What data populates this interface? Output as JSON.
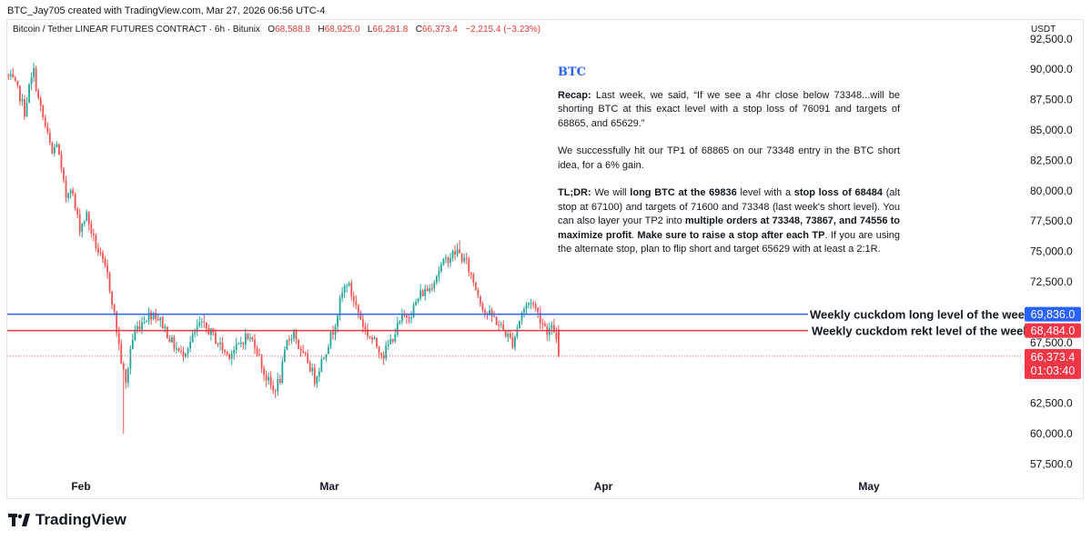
{
  "header": {
    "credit": "BTC_Jay705 created with TradingView.com, Mar 27, 2026 06:56 UTC-4",
    "symbol": "Bitcoin / Tether LINEAR FUTURES CONTRACT · 6h · Bitunix",
    "o_label": "O",
    "o_value": "68,588.8",
    "h_label": "H",
    "h_value": "68,925.0",
    "l_label": "L",
    "l_value": "66,281.8",
    "c_label": "C",
    "c_value": "66,373.4",
    "change": "−2,215.4 (−3.23%)"
  },
  "currency": "USDT",
  "note": {
    "title": "BTC",
    "p1_b1": "Recap:",
    "p1_t1": " Last week, we said, “If we see a 4hr close below 73348...will be shorting BTC at this exact level with a stop loss of 76091 and targets of 68865, and 65629.”",
    "p2": "We successfully hit our TP1 of 68865 on our 73348 entry in the BTC short idea, for a 6% gain.",
    "p3_b1": "TL;DR:",
    "p3_t1": " We will ",
    "p3_b2": "long BTC at the 69836",
    "p3_t2": " level with a ",
    "p3_b3": "stop loss of 68484",
    "p3_t3": " (alt stop at 67100) and targets of 71600 and 73348 (last week's short level). You can also layer your TP2 into ",
    "p3_b4": "multiple orders at 73348, 73867, and 74556 to maximize profit",
    "p3_t4": ". ",
    "p3_b5": "Make sure to raise a stop after each TP",
    "p3_t5": ". If you are using the alternate stop, plan to flip short and target 65629 with at least a 2:1R."
  },
  "logo_text": "TradingView",
  "colors": {
    "up": "#26a69a",
    "down": "#ef5350",
    "blue_level": "#2962ff",
    "red_level": "#f23645",
    "text": "#131722"
  },
  "chart_data": {
    "type": "candlestick",
    "timeframe": "6h",
    "ylim": [
      56000,
      92500
    ],
    "y_ticks": [
      "92,500.0",
      "90,000.0",
      "87,500.0",
      "85,000.0",
      "82,500.0",
      "80,000.0",
      "77,500.0",
      "75,000.0",
      "72,500.0",
      "67,500.0",
      "62,500.0",
      "60,000.0",
      "57,500.0"
    ],
    "y_tick_values": [
      92500,
      90000,
      87500,
      85000,
      82500,
      80000,
      77500,
      75000,
      72500,
      67500,
      62500,
      60000,
      57500
    ],
    "x_ticks": [
      "Feb",
      "Mar",
      "Apr",
      "May"
    ],
    "price_path": [
      [
        0,
        89500
      ],
      [
        3,
        89000
      ],
      [
        6,
        87800
      ],
      [
        8,
        86500
      ],
      [
        10,
        88500
      ],
      [
        12,
        89800
      ],
      [
        14,
        87500
      ],
      [
        16,
        86000
      ],
      [
        18,
        84500
      ],
      [
        20,
        83000
      ],
      [
        22,
        84000
      ],
      [
        24,
        81500
      ],
      [
        26,
        79500
      ],
      [
        28,
        80500
      ],
      [
        30,
        78500
      ],
      [
        32,
        77000
      ],
      [
        35,
        78000
      ],
      [
        38,
        76000
      ],
      [
        41,
        74500
      ],
      [
        44,
        73000
      ],
      [
        46,
        71000
      ],
      [
        48,
        68500
      ],
      [
        50,
        66000
      ],
      [
        52,
        64000
      ],
      [
        54,
        67000
      ],
      [
        56,
        68500
      ],
      [
        60,
        69500
      ],
      [
        64,
        70000
      ],
      [
        68,
        69000
      ],
      [
        72,
        67500
      ],
      [
        76,
        66500
      ],
      [
        80,
        67500
      ],
      [
        84,
        69000
      ],
      [
        88,
        68500
      ],
      [
        92,
        67500
      ],
      [
        96,
        66500
      ],
      [
        100,
        67000
      ],
      [
        104,
        68000
      ],
      [
        108,
        67500
      ],
      [
        112,
        65000
      ],
      [
        116,
        63500
      ],
      [
        119,
        64500
      ],
      [
        122,
        67500
      ],
      [
        125,
        68500
      ],
      [
        128,
        66500
      ],
      [
        131,
        66000
      ],
      [
        134,
        64500
      ],
      [
        138,
        66500
      ],
      [
        142,
        68500
      ],
      [
        146,
        71500
      ],
      [
        148,
        72500
      ],
      [
        150,
        71500
      ],
      [
        153,
        70000
      ],
      [
        156,
        68500
      ],
      [
        160,
        67500
      ],
      [
        164,
        66500
      ],
      [
        168,
        68000
      ],
      [
        172,
        69500
      ],
      [
        176,
        70000
      ],
      [
        180,
        71500
      ],
      [
        184,
        72000
      ],
      [
        188,
        73500
      ],
      [
        192,
        74500
      ],
      [
        196,
        75000
      ],
      [
        200,
        74000
      ],
      [
        204,
        72000
      ],
      [
        208,
        70000
      ],
      [
        212,
        69500
      ],
      [
        216,
        68500
      ],
      [
        220,
        67500
      ],
      [
        224,
        70000
      ],
      [
        228,
        71000
      ],
      [
        232,
        69500
      ],
      [
        235,
        68500
      ],
      [
        238,
        68600
      ],
      [
        240,
        66373
      ]
    ],
    "wick_extremes": [
      {
        "bar": 50,
        "low": 60000
      },
      {
        "bar": 196,
        "high": 75900
      }
    ],
    "last": {
      "open": 68588.8,
      "high": 68925.0,
      "low": 66281.8,
      "close": 66373.4
    },
    "price_labels": {
      "long_level": "69,836.0",
      "rekt_level": "68,484.0",
      "last_price": "66,373.4",
      "countdown": "01:03:40"
    },
    "levels": [
      {
        "name": "Weekly cuckdom long level of the week",
        "value": 69836,
        "color": "#2962ff"
      },
      {
        "name": "Weekly cuckdom rekt level of the week",
        "value": 68484,
        "color": "#f23645"
      }
    ],
    "last_price_value": 66373.4
  }
}
